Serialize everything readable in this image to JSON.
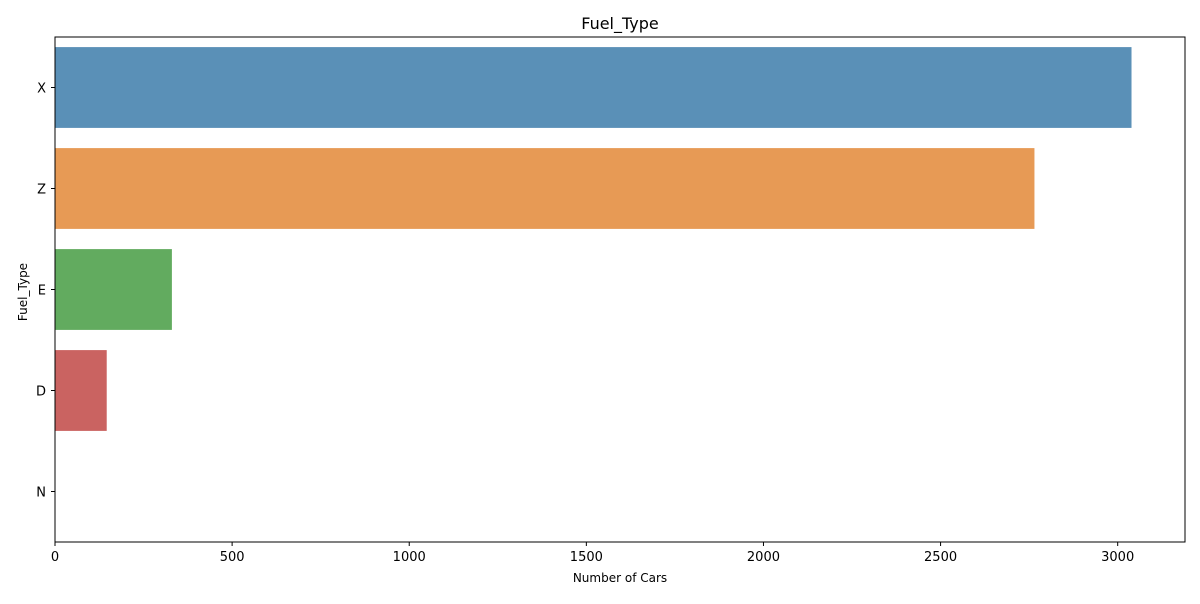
{
  "chart_data": {
    "type": "bar",
    "orientation": "horizontal",
    "title": "Fuel_Type",
    "xlabel": "Number of Cars",
    "ylabel": "Fuel_Type",
    "categories": [
      "X",
      "Z",
      "E",
      "D",
      "N"
    ],
    "values": [
      3039,
      2765,
      330,
      146,
      1
    ],
    "xlim": [
      0,
      3190
    ],
    "xticks": [
      0,
      500,
      1000,
      1500,
      2000,
      2500,
      3000
    ],
    "grid": false,
    "legend": "none",
    "colors": [
      "#5a90b7",
      "#e79a55",
      "#62ab5f",
      "#ca6361",
      "#9b7fb8"
    ]
  }
}
